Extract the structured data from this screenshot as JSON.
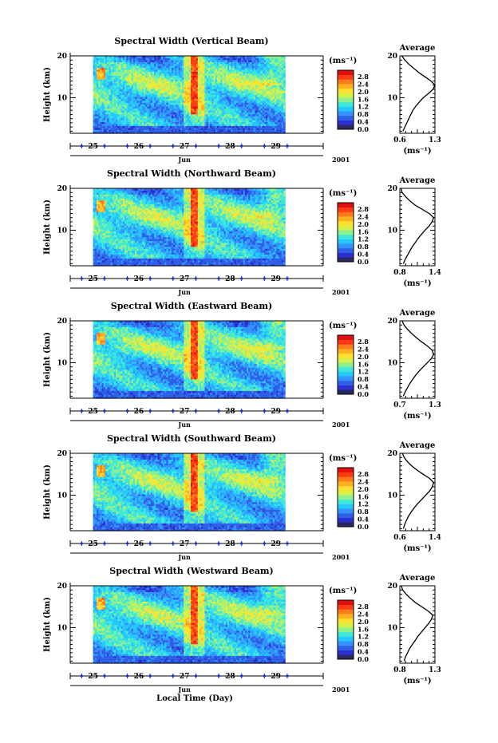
{
  "figure": {
    "x_axis_title": "Local Time (Day)"
  },
  "colorbar": {
    "unit": "(ms⁻¹)",
    "tick_labels": [
      "0.0",
      "0.4",
      "0.8",
      "1.2",
      "1.6",
      "2.0",
      "2.4",
      "2.8"
    ],
    "colors": [
      "#2a2a60",
      "#2b2fd2",
      "#2f5fe6",
      "#3394ff",
      "#25c8ff",
      "#3fe8d8",
      "#8ef08e",
      "#d8f04a",
      "#ffe030",
      "#ffb020",
      "#ff7a1a",
      "#ff3a14",
      "#e01010"
    ]
  },
  "chart_data": [
    {
      "type": "heatmap",
      "title": "Spectral Width (Vertical Beam)",
      "ylabel": "Height (km)",
      "xlabel": "Jun",
      "year_label": "2001",
      "x_tick_labels": [
        "25",
        "26",
        "27",
        "28",
        "29"
      ],
      "y_tick_labels": [
        "10",
        "20"
      ],
      "ylim": [
        1.5,
        20
      ],
      "x_range_days": [
        24.5,
        29.6
      ],
      "data_x_range_days": [
        25.0,
        29.2
      ],
      "value_range": [
        0,
        3.0
      ],
      "clim_unit": "ms-1",
      "red_column_day": 27.2,
      "average_profile": {
        "title": "Average",
        "xlabel": "(ms⁻¹)",
        "x_tick_labels": [
          "0.6",
          "1.3"
        ],
        "xlim": [
          0.6,
          1.3
        ],
        "height_km": [
          2,
          3,
          4,
          5,
          6,
          7,
          8,
          9,
          10,
          11,
          12,
          13,
          14,
          15,
          16,
          17,
          18,
          19,
          20
        ],
        "width": [
          0.66,
          0.7,
          0.74,
          0.78,
          0.82,
          0.86,
          0.92,
          0.99,
          1.07,
          1.17,
          1.26,
          1.3,
          1.22,
          1.1,
          0.98,
          0.88,
          0.78,
          0.7,
          0.64
        ]
      }
    },
    {
      "type": "heatmap",
      "title": "Spectral Width (Northward Beam)",
      "ylabel": "Height (km)",
      "xlabel": "Jun",
      "year_label": "2001",
      "x_tick_labels": [
        "25",
        "26",
        "27",
        "28",
        "29"
      ],
      "y_tick_labels": [
        "10",
        "20"
      ],
      "ylim": [
        1.5,
        20
      ],
      "x_range_days": [
        24.5,
        29.6
      ],
      "data_x_range_days": [
        25.0,
        29.2
      ],
      "value_range": [
        0,
        3.0
      ],
      "clim_unit": "ms-1",
      "red_column_day": 27.2,
      "average_profile": {
        "title": "Average",
        "xlabel": "(ms⁻¹)",
        "x_tick_labels": [
          "0.8",
          "1.4"
        ],
        "xlim": [
          0.8,
          1.4
        ],
        "height_km": [
          2,
          3,
          4,
          5,
          6,
          7,
          8,
          9,
          10,
          11,
          12,
          13,
          14,
          15,
          16,
          17,
          18,
          19,
          20
        ],
        "width": [
          0.86,
          0.89,
          0.93,
          0.97,
          1.01,
          1.06,
          1.11,
          1.17,
          1.23,
          1.3,
          1.35,
          1.38,
          1.3,
          1.18,
          1.06,
          0.97,
          0.9,
          0.84,
          0.82
        ]
      }
    },
    {
      "type": "heatmap",
      "title": "Spectral Width (Eastward Beam)",
      "ylabel": "Height (km)",
      "xlabel": "Jun",
      "year_label": "2001",
      "x_tick_labels": [
        "25",
        "26",
        "27",
        "28",
        "29"
      ],
      "y_tick_labels": [
        "10",
        "20"
      ],
      "ylim": [
        1.5,
        20
      ],
      "x_range_days": [
        24.5,
        29.6
      ],
      "data_x_range_days": [
        25.0,
        29.2
      ],
      "value_range": [
        0,
        3.0
      ],
      "clim_unit": "ms-1",
      "red_column_day": 27.2,
      "average_profile": {
        "title": "Average",
        "xlabel": "(ms⁻¹)",
        "x_tick_labels": [
          "0.7",
          "1.3"
        ],
        "xlim": [
          0.7,
          1.3
        ],
        "height_km": [
          2,
          3,
          4,
          5,
          6,
          7,
          8,
          9,
          10,
          11,
          12,
          13,
          14,
          15,
          16,
          17,
          18,
          19,
          20
        ],
        "width": [
          0.76,
          0.79,
          0.83,
          0.87,
          0.92,
          0.97,
          1.03,
          1.1,
          1.17,
          1.24,
          1.28,
          1.25,
          1.17,
          1.07,
          0.98,
          0.9,
          0.83,
          0.77,
          0.74
        ]
      }
    },
    {
      "type": "heatmap",
      "title": "Spectral Width (Southward Beam)",
      "ylabel": "Height (km)",
      "xlabel": "Jun",
      "year_label": "2001",
      "x_tick_labels": [
        "25",
        "26",
        "27",
        "28",
        "29"
      ],
      "y_tick_labels": [
        "10",
        "20"
      ],
      "ylim": [
        1.5,
        20
      ],
      "x_range_days": [
        24.5,
        29.6
      ],
      "data_x_range_days": [
        25.0,
        29.2
      ],
      "value_range": [
        0,
        3.0
      ],
      "clim_unit": "ms-1",
      "red_column_day": 27.2,
      "average_profile": {
        "title": "Average",
        "xlabel": "(ms⁻¹)",
        "x_tick_labels": [
          "0.6",
          "1.4"
        ],
        "xlim": [
          0.6,
          1.4
        ],
        "height_km": [
          2,
          3,
          4,
          5,
          6,
          7,
          8,
          9,
          10,
          11,
          12,
          13,
          14,
          15,
          16,
          17,
          18,
          19,
          20
        ],
        "width": [
          0.68,
          0.71,
          0.75,
          0.8,
          0.86,
          0.93,
          1.01,
          1.1,
          1.19,
          1.28,
          1.34,
          1.37,
          1.28,
          1.13,
          0.99,
          0.87,
          0.77,
          0.7,
          0.66
        ]
      }
    },
    {
      "type": "heatmap",
      "title": "Spectral Width (Westward Beam)",
      "ylabel": "Height (km)",
      "xlabel": "Jun",
      "year_label": "2001",
      "x_tick_labels": [
        "25",
        "26",
        "27",
        "28",
        "29"
      ],
      "y_tick_labels": [
        "10",
        "20"
      ],
      "ylim": [
        1.5,
        20
      ],
      "x_range_days": [
        24.5,
        29.6
      ],
      "data_x_range_days": [
        25.0,
        29.2
      ],
      "value_range": [
        0,
        3.0
      ],
      "clim_unit": "ms-1",
      "red_column_day": 27.2,
      "average_profile": {
        "title": "Average",
        "xlabel": "(ms⁻¹)",
        "x_tick_labels": [
          "0.8",
          "1.3"
        ],
        "xlim": [
          0.8,
          1.3
        ],
        "height_km": [
          2,
          3,
          4,
          5,
          6,
          7,
          8,
          9,
          10,
          11,
          12,
          13,
          14,
          15,
          16,
          17,
          18,
          19,
          20
        ],
        "width": [
          0.86,
          0.88,
          0.91,
          0.94,
          0.98,
          1.02,
          1.06,
          1.11,
          1.16,
          1.21,
          1.25,
          1.27,
          1.2,
          1.11,
          1.02,
          0.95,
          0.89,
          0.84,
          0.82
        ]
      }
    }
  ]
}
